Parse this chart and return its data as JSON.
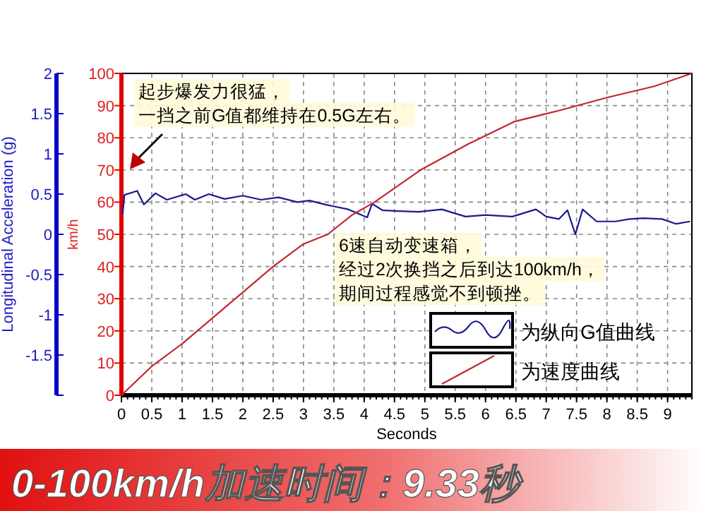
{
  "chart_data": {
    "type": "line",
    "title": "0-100km/h加速时间：9.33秒",
    "xlabel": "Seconds",
    "ylabel": "Longitudinal Acceleration (g)",
    "y2label": "km/h",
    "annotations": [
      "起步爆发力很猛，",
      "一挡之前G值都维持在0.5G左右。",
      "6速自动变速箱，",
      "经过2次换挡之后到达100km/h，",
      "期间过程感觉不到顿挫。"
    ],
    "xlim": [
      0,
      9.4
    ],
    "xticks": [
      0,
      0.5,
      1,
      1.5,
      2,
      2.5,
      3,
      3.5,
      4,
      4.5,
      5,
      5.5,
      6,
      6.5,
      7,
      7.5,
      8,
      8.5,
      9
    ],
    "ylim": [
      -2,
      2
    ],
    "yticks": [
      {
        "value": -2,
        "label": null
      },
      -1.5,
      -1,
      -0.5,
      0,
      0.5,
      1,
      1.5,
      2
    ],
    "y2lim": [
      0,
      100
    ],
    "y2ticks": [
      0,
      10,
      20,
      30,
      40,
      50,
      60,
      70,
      80,
      90,
      100
    ],
    "grid": true,
    "legend": "bottom right",
    "series": [
      {
        "name": "为纵向G值曲线",
        "color": "#1a1a8c",
        "axis": "y",
        "x": [
          0.02,
          0.05,
          0.26,
          0.37,
          0.56,
          0.75,
          1.06,
          1.21,
          1.44,
          1.7,
          2.0,
          2.3,
          2.59,
          2.9,
          3.1,
          3.36,
          3.55,
          3.74,
          4.05,
          4.13,
          4.3,
          4.51,
          4.9,
          5.28,
          5.67,
          6.0,
          6.44,
          6.83,
          7.0,
          7.21,
          7.35,
          7.48,
          7.6,
          7.83,
          8.14,
          8.37,
          8.6,
          8.91,
          9.14,
          9.37
        ],
        "values": [
          0.25,
          0.49,
          0.54,
          0.37,
          0.51,
          0.43,
          0.5,
          0.43,
          0.5,
          0.44,
          0.48,
          0.43,
          0.46,
          0.4,
          0.42,
          0.37,
          0.34,
          0.31,
          0.21,
          0.38,
          0.3,
          0.29,
          0.28,
          0.31,
          0.22,
          0.24,
          0.22,
          0.31,
          0.22,
          0.19,
          0.3,
          0.0,
          0.31,
          0.16,
          0.16,
          0.19,
          0.2,
          0.19,
          0.13,
          0.16
        ]
      },
      {
        "name": "为速度曲线",
        "color": "#c0282d",
        "axis": "y2",
        "x": [
          0,
          0.5,
          1,
          1.5,
          2,
          2.5,
          3,
          3.4,
          3.8,
          4.17,
          4.93,
          5.71,
          6.47,
          7.24,
          8.0,
          8.78,
          9.4
        ],
        "values": [
          0,
          9,
          16,
          24,
          32,
          40,
          47,
          50,
          56,
          60,
          70,
          78,
          85,
          88.6,
          92.5,
          96,
          100
        ]
      }
    ]
  }
}
